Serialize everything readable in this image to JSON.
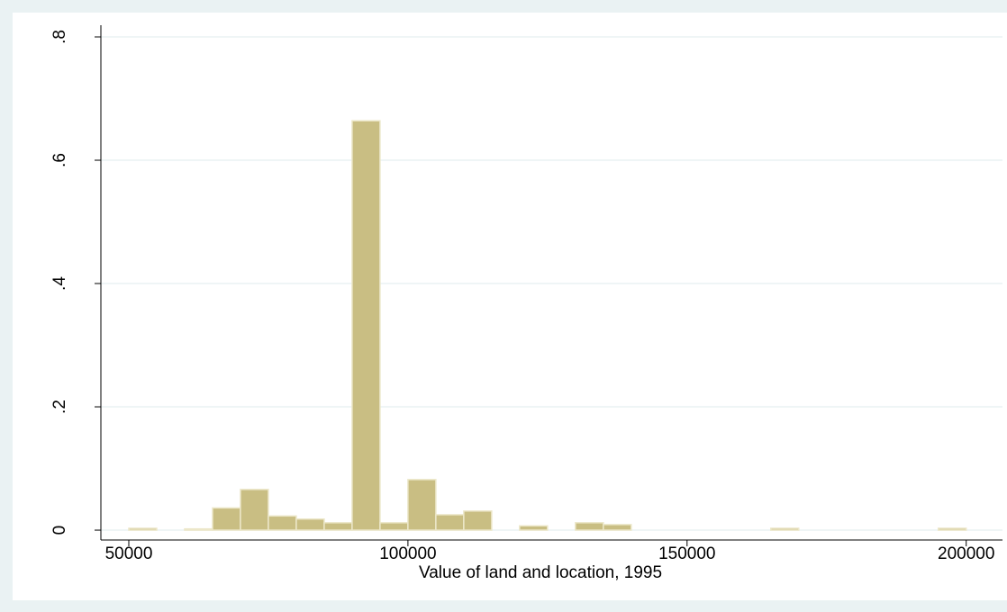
{
  "chart_data": {
    "type": "histogram",
    "x_label": "Value of land and location, 1995",
    "bins": [
      50000,
      55000,
      60000,
      65000,
      70000,
      75000,
      80000,
      85000,
      90000,
      95000,
      100000,
      105000,
      110000,
      115000,
      120000,
      125000,
      130000,
      135000,
      140000,
      145000,
      150000,
      155000,
      160000,
      165000,
      170000,
      175000,
      180000,
      185000,
      190000,
      195000,
      200000
    ],
    "values": [
      0.003,
      0,
      0.002,
      0.036,
      0.066,
      0.023,
      0.018,
      0.012,
      0.664,
      0.012,
      0.082,
      0.025,
      0.031,
      0,
      0.007,
      0,
      0.012,
      0.009,
      0,
      0,
      0,
      0,
      0,
      0.003,
      0,
      0,
      0,
      0,
      0,
      0.003
    ],
    "color": "#c9be83",
    "xlim": [
      45000,
      206500
    ],
    "ylim": [
      -0.016,
      0.819
    ],
    "xticks": [
      50000,
      100000,
      150000,
      200000
    ],
    "yticks": [
      0,
      {
        "value": 0.2,
        "label": ".2"
      },
      {
        "value": 0.4,
        "label": ".4"
      },
      {
        "value": 0.6,
        "label": ".6"
      },
      {
        "value": 0.8,
        "label": ".8"
      }
    ],
    "grid": true
  }
}
